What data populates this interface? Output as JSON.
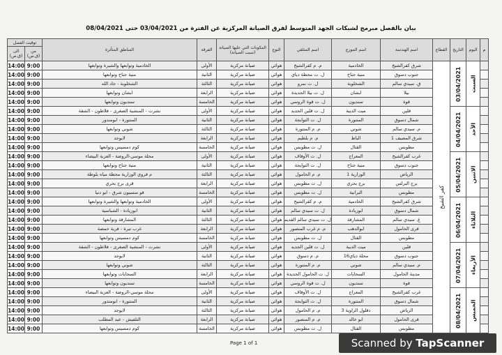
{
  "title": "بيان بالفصل مبرمج لشبكات الجهد المتوسط لفرق الصيانة المركزية عن الفترة من 03/04/2021 حتى 08/04/2021",
  "headers": {
    "no": "م",
    "day": "اليوم",
    "date": "التاريخ",
    "sector": "القطاع",
    "engineering": "اسم الهندسة",
    "distributor": "اسم الموزع",
    "receiver": "اسم المتلقي",
    "type": "النوع",
    "components": "المكونات التي عليها الصيانة (سبب الصيانة)",
    "team": "الفرقة",
    "areas": "المناطق المتأثرة",
    "cut_time": "توقيت الفصل",
    "from": "من (ق.ص)",
    "to": "الى (ق.ص)"
  },
  "sector": "كفر الشيخ",
  "days": [
    {
      "day": "السبت",
      "date": "03/04/2021"
    },
    {
      "day": "الأحد",
      "date": "04/04/2021"
    },
    {
      "day": "الاثنين",
      "date": "05/04/2021"
    },
    {
      "day": "الثلاثاء",
      "date": "06/04/2021"
    },
    {
      "day": "الأربعاء",
      "date": "07/04/2021"
    },
    {
      "day": "الخميس",
      "date": "08/04/2021"
    }
  ],
  "rows": [
    [
      "شرق كفرالشيخ",
      "الخادمية",
      "م. م كفرالشيخ",
      "هوائي",
      "صيانة مركزية",
      "الأولى",
      "الخادمية وتوابعها والشيرة وتوابعها",
      "9:00",
      "14:00"
    ],
    [
      "جنوب دسوق",
      "منية جناح",
      "ل. ت محطة دياي",
      "هوائي",
      "صيانة مركزية",
      "الثانية",
      "منية جناح وتوابعها",
      "9:00",
      "14:00"
    ],
    [
      "ق. سيدي سالم",
      "الشخلوبة",
      "ل. ت نمرو",
      "هوائي",
      "صيانة مركزية",
      "الثالثة",
      "الشخلوبة - جاد الله",
      "9:00",
      "14:00"
    ],
    [
      "بيلا",
      "ابشان",
      "ل. ت بيلا الجديدة",
      "هوائي",
      "صيانة مركزية",
      "الرابعة",
      "ابشان وتوابعها",
      "9:00",
      "14:00"
    ],
    [
      "قوة",
      "سنديون",
      "ل. ت قوة الروسي",
      "هوائي",
      "صيانة مركزية",
      "الخامسة",
      "سنديون وتوابعها",
      "9:00",
      "14:00"
    ],
    [
      "قلين",
      "ميت الديبة",
      "ل. ت قلين الجديد",
      "هوائي",
      "صيانة مركزية",
      "الأولى",
      "نشرت - المنشية الصغرى - فلاطون - الشقة",
      "9:00",
      "14:00"
    ],
    [
      "شمال دسوق",
      "المنتورة",
      "ل. ت التوابجة",
      "هوائي",
      "صيانة مركزية",
      "الثانية",
      "المنتورة - ابومندور",
      "9:00",
      "14:00"
    ],
    [
      "م. سيدي سالم",
      "شوني",
      "م. م المنتورة",
      "هوائي",
      "صيانة مركزية",
      "الثالثة",
      "شوني وتوابعها",
      "9:00",
      "14:00"
    ],
    [
      "شرق المصيف 1",
      "الباط",
      "م. م بلطيم",
      "هوائي",
      "صيانة مركزية",
      "الرابعة",
      "لايوجد",
      "9:00",
      "14:00"
    ],
    [
      "مطوبس",
      "القتال",
      "ل. ت مطوبس",
      "هوائي",
      "صيانة مركزية",
      "الخامسة",
      "كوم دمسيس وتوابعها",
      "9:00",
      "14:00"
    ],
    [
      "غرب كفرالشيخ",
      "المعراج",
      "ل. ت الأوقاف",
      "هوائي",
      "صيانة مركزية",
      "الأولى",
      "محلة موسي-الروضة - العزبة البيضاء",
      "9:00",
      "14:00"
    ],
    [
      "جنوب دسوق",
      "منية جناح",
      "ل. ت التوابجة",
      "هوائي",
      "صيانة مركزية",
      "الثانية",
      "منية جناح وتوابعها",
      "9:00",
      "14:00"
    ],
    [
      "الرياض",
      "الوزارية 1",
      "م. م الحامول",
      "هوائي",
      "صيانة مركزية",
      "الثالثة",
      "م قروي الوزارية محطة مياه بلوطة",
      "9:00",
      "14:00"
    ],
    [
      "برج البرلس",
      "برج بحري",
      "ل. ت مطوبس",
      "هوائي",
      "صيانة مركزية",
      "الرابعة",
      "قرى برج بحري",
      "9:00",
      "14:00"
    ],
    [
      "مطوبس",
      "البرانية",
      "ل. ت مطوبس",
      "هوائي",
      "صيانة مركزية",
      "الخامسة",
      "قو سسيون شرق - ابو دنيا",
      "9:00",
      "14:00"
    ],
    [
      "شرق كفرالشيخ",
      "الخادمية",
      "م. م كفرالشيخ",
      "هوائي",
      "صيانة مركزية",
      "الأولى",
      "الخادمية وتوابعها والشيرة وتوابعها",
      "9:00",
      "14:00"
    ],
    [
      "شمال دسوق",
      "ابوزيادة",
      "ل. ت سيدي سالم",
      "هوائي",
      "صيانة مركزية",
      "الثانية",
      "ابوزيادة - الشباسية",
      "9:00",
      "14:00"
    ],
    [
      "غ. سيدي سالم",
      "المشارقة",
      "ل. ت سيدي سالم القديمة",
      "هوائي",
      "صيانة مركزية",
      "الثالثة",
      "المشارقة وتوابعها",
      "9:00",
      "14:00"
    ],
    [
      "قرى الحامول",
      "ابوالدهب",
      "م. م غرب المنصور",
      "هوائي",
      "صيانة مركزية",
      "الرابعة",
      "غرب تيرة - قرية حمصة",
      "9:00",
      "14:00"
    ],
    [
      "مطوبس",
      "القتال",
      "ل. ت مطوبس",
      "هوائي",
      "صيانة مركزية",
      "الخامسة",
      "كوم دمسيس وتوابعها",
      "9:00",
      "14:00"
    ],
    [
      "قلين",
      "ميت الديبة",
      "ل. ت قلين الجديد",
      "هوائي",
      "صيانة مركزية",
      "الأولى",
      "نشرت - المنشية الصغرى - فلاطون - الشقة",
      "9:00",
      "14:00"
    ],
    [
      "جنوب دسوق",
      "محلة دياي16",
      "م. م دسوق",
      "هوائي",
      "صيانة مركزية",
      "الثانية",
      "لايوجد",
      "9:00",
      "14:00"
    ],
    [
      "م. سيدي سالم",
      "شوني",
      "م. م المنتورة",
      "هوائي",
      "صيانة مركزية",
      "الثالثة",
      "شوني وتوابعها",
      "9:00",
      "14:00"
    ],
    [
      "مدينة الحامول",
      "السحابات",
      "ل. ت الحامول الجديدة",
      "هوائي",
      "صيانة مركزية",
      "الرابعة",
      "السحابات وتوابعها",
      "9:00",
      "14:00"
    ],
    [
      "قوة",
      "سنديون",
      "ل. ت قوة الروسي",
      "هوائي",
      "صيانة مركزية",
      "الخامسة",
      "سنديون وتوابعها",
      "9:00",
      "14:00"
    ],
    [
      "غرب كفرالشيخ",
      "المعراج",
      "ل. ت الأوقاف",
      "هوائي",
      "صيانة مركزية",
      "الأولى",
      "محلة موسي-الروضة - العزبة البيضاء",
      "9:00",
      "14:00"
    ],
    [
      "شمال دسوق",
      "المنتورة",
      "ل. ت التوابجة",
      "هوائي",
      "صيانة مركزية",
      "الثانية",
      "المنتورة - ابومندور",
      "9:00",
      "14:00"
    ],
    [
      "الرياض",
      "دقلول الزاوية 3",
      "م. م الحامول",
      "هوائي",
      "صيانة مركزية",
      "الثالثة",
      "لايوجد",
      "9:00",
      "14:00"
    ],
    [
      "قرى الحامول",
      "ابو خالد",
      "م. م المنصور",
      "هوائي",
      "صيانة مركزية",
      "الرابعة",
      "التلفيش - عبد المطلب",
      "9:00",
      "14:00"
    ],
    [
      "مطوبس",
      "القتال",
      "ل. ت مطوبس",
      "هوائي",
      "صيانة مركزية",
      "الخامسة",
      "كوم دمسيس وتوابعها",
      "9:00",
      "14:00"
    ]
  ],
  "footer": "Page 1 of 1",
  "banner": {
    "prefix": "Scanned by ",
    "brand": "TapScanner"
  }
}
